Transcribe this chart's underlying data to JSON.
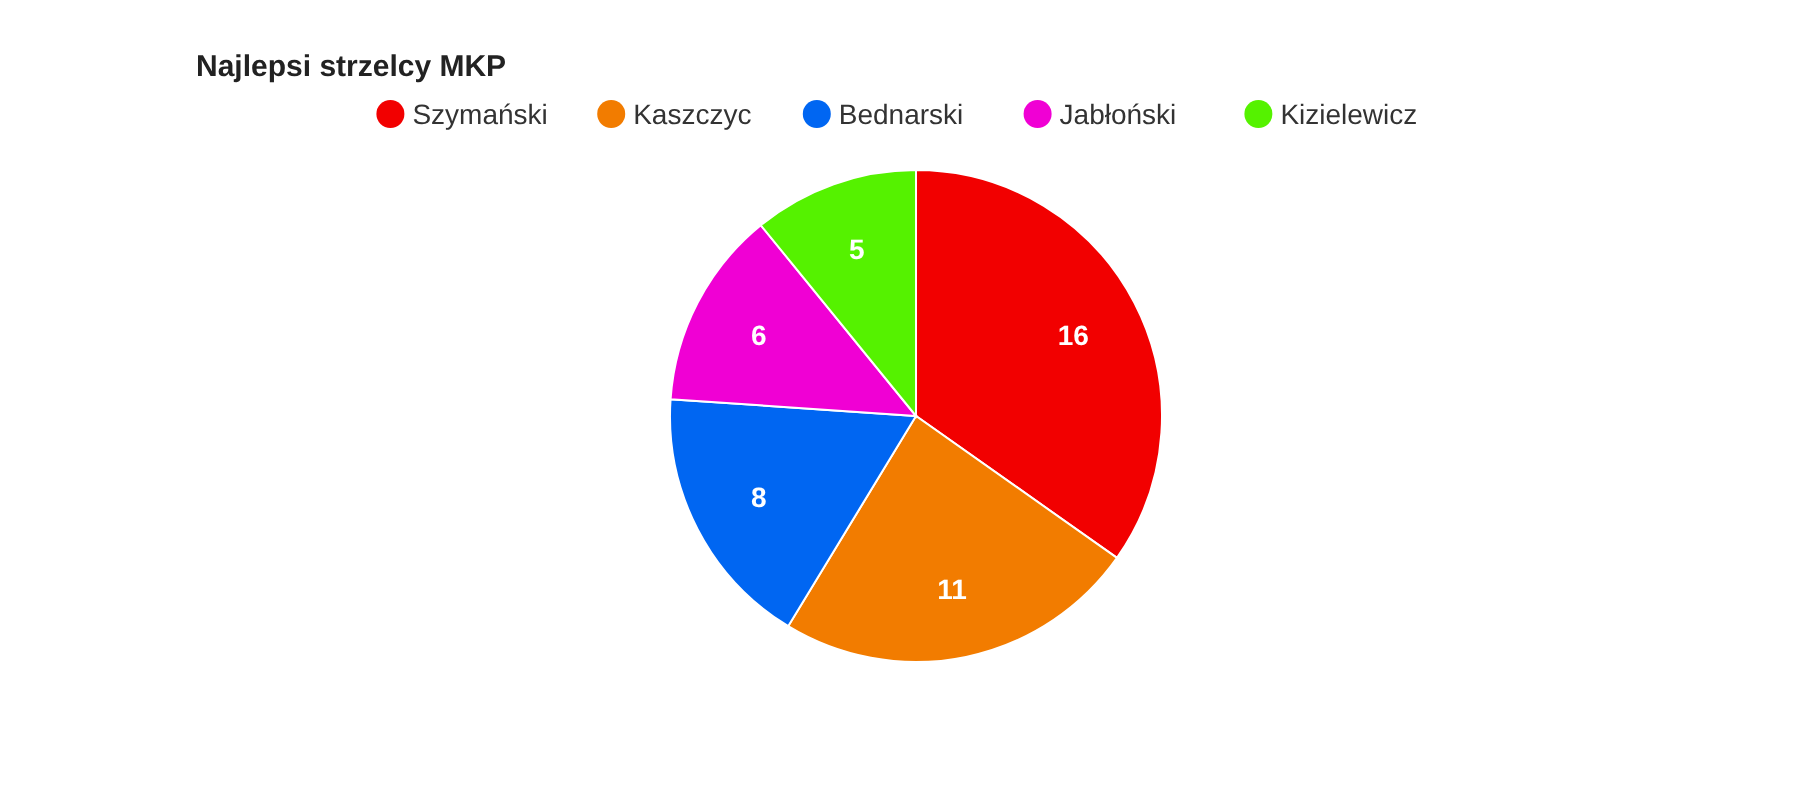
{
  "chart_data": {
    "type": "pie",
    "title": "Najlepsi strzelcy MKP",
    "categories": [
      "Szymański",
      "Kaszczyc",
      "Bednarski",
      "Jabłoński",
      "Kizielewicz"
    ],
    "values": [
      16,
      11,
      8,
      6,
      5
    ],
    "colors": [
      "#f20000",
      "#f27c00",
      "#0066f2",
      "#f000d4",
      "#55f200"
    ],
    "data_labels": true,
    "legend": "top"
  }
}
